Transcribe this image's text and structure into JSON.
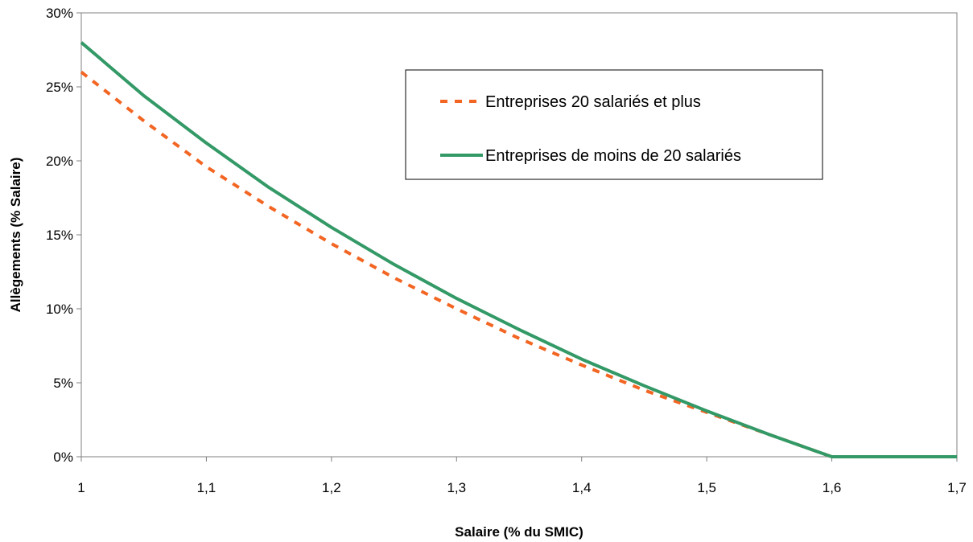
{
  "chart_data": {
    "type": "line",
    "title": "",
    "xlabel": "Salaire (% du SMIC)",
    "ylabel": "Allègements (% Salaire)",
    "xlim": [
      1,
      1.7
    ],
    "ylim": [
      0,
      30
    ],
    "x_ticks": [
      1,
      1.1,
      1.2,
      1.3,
      1.4,
      1.5,
      1.6,
      1.7
    ],
    "x_tick_labels": [
      "1",
      "1,1",
      "1,2",
      "1,3",
      "1,4",
      "1,5",
      "1,6",
      "1,7"
    ],
    "y_ticks": [
      0,
      5,
      10,
      15,
      20,
      25,
      30
    ],
    "y_tick_labels": [
      "0%",
      "5%",
      "10%",
      "15%",
      "20%",
      "25%",
      "30%"
    ],
    "grid": false,
    "legend_position": "top-right",
    "x": [
      1.0,
      1.05,
      1.1,
      1.15,
      1.2,
      1.25,
      1.3,
      1.35,
      1.4,
      1.45,
      1.5,
      1.55,
      1.6,
      1.65,
      1.7
    ],
    "series": [
      {
        "name": "Entreprises 20 salariés et plus",
        "color": "#f26522",
        "style": "dashed",
        "values": [
          26.0,
          22.7,
          19.6,
          16.9,
          14.4,
          12.1,
          10.0,
          8.0,
          6.2,
          4.5,
          3.0,
          1.5,
          0.0,
          0.0,
          0.0
        ]
      },
      {
        "name": "Entreprises de moins de 20 salariés",
        "color": "#339966",
        "style": "solid",
        "values": [
          28.0,
          24.4,
          21.2,
          18.2,
          15.5,
          13.0,
          10.7,
          8.6,
          6.6,
          4.8,
          3.1,
          1.5,
          0.0,
          0.0,
          0.0
        ]
      }
    ]
  }
}
